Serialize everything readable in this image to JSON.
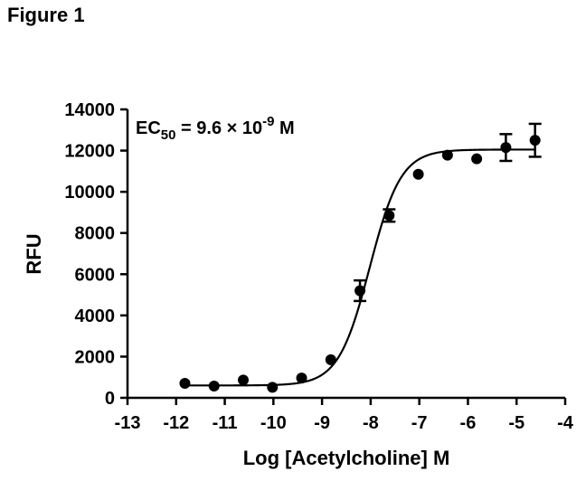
{
  "figure_label": "Figure 1",
  "chart_data": {
    "type": "scatter",
    "xlabel": "Log [Acetylcholine] M",
    "ylabel": "RFU",
    "xlim": [
      -13,
      -4
    ],
    "ylim": [
      0,
      14000
    ],
    "x_ticks": [
      -13,
      -12,
      -11,
      -10,
      -9,
      -8,
      -7,
      -6,
      -5,
      -4
    ],
    "y_ticks": [
      0,
      2000,
      4000,
      6000,
      8000,
      10000,
      12000,
      14000
    ],
    "annotation": {
      "prefix": "EC",
      "subscript": "50",
      "middle": " = 9.6 × 10",
      "superscript": "-9",
      "suffix": " M"
    },
    "grid": false,
    "points": [
      {
        "x": -11.82,
        "y": 700,
        "err": 0
      },
      {
        "x": -11.22,
        "y": 570,
        "err": 0
      },
      {
        "x": -10.62,
        "y": 860,
        "err": 0
      },
      {
        "x": -10.02,
        "y": 510,
        "err": 0
      },
      {
        "x": -9.42,
        "y": 960,
        "err": 0
      },
      {
        "x": -8.82,
        "y": 1850,
        "err": 0
      },
      {
        "x": -8.22,
        "y": 5200,
        "err": 500
      },
      {
        "x": -7.62,
        "y": 8850,
        "err": 300
      },
      {
        "x": -7.02,
        "y": 10850,
        "err": 0
      },
      {
        "x": -6.42,
        "y": 11780,
        "err": 0
      },
      {
        "x": -5.82,
        "y": 11600,
        "err": 0
      },
      {
        "x": -5.22,
        "y": 12150,
        "err": 650
      },
      {
        "x": -4.62,
        "y": 12500,
        "err": 800
      }
    ],
    "fit": {
      "bottom": 600,
      "top": 12050,
      "logEC50": -8.02,
      "hill": 1.35
    }
  }
}
